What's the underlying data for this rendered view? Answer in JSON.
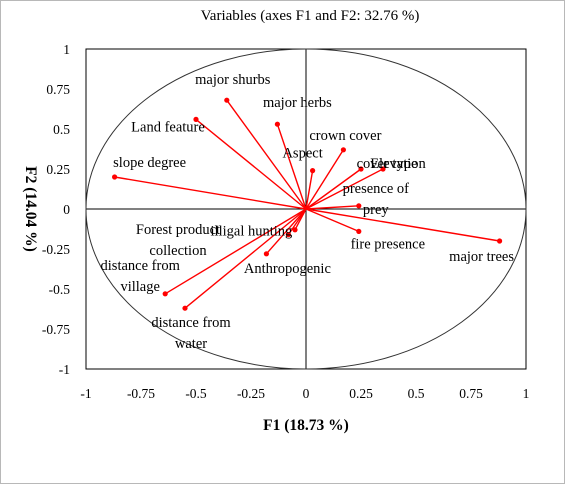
{
  "chart_data": {
    "type": "scatter",
    "title": "Variables (axes F1 and F2: 32.76 %)",
    "xlabel": "F1 (18.73 %)",
    "ylabel": "F2 (14.04 %)",
    "xlim": [
      -1,
      1
    ],
    "ylim": [
      -1,
      1
    ],
    "x_ticks": [
      "-1",
      "-0.75",
      "-0.5",
      "-0.25",
      "0",
      "0.25",
      "0.5",
      "0.75",
      "1"
    ],
    "y_ticks": [
      "1",
      "0.75",
      "0.5",
      "0.25",
      "0",
      "-0.25",
      "-0.5",
      "-0.75",
      "-1"
    ],
    "grid": false,
    "correlation_circle": true,
    "line_color": "#ff0000",
    "variables": [
      {
        "label": [
          "major shurbs"
        ],
        "x": -0.36,
        "y": 0.68
      },
      {
        "label": [
          "major herbs"
        ],
        "x": -0.13,
        "y": 0.53
      },
      {
        "label": [
          "Land feature"
        ],
        "x": -0.5,
        "y": 0.56
      },
      {
        "label": [
          "slope degree"
        ],
        "x": -0.87,
        "y": 0.2
      },
      {
        "label": [
          "Aspect"
        ],
        "x": 0.03,
        "y": 0.24
      },
      {
        "label": [
          "crown cover"
        ],
        "x": 0.17,
        "y": 0.37
      },
      {
        "label": [
          "cover type"
        ],
        "x": 0.25,
        "y": 0.25
      },
      {
        "label": [
          "Elevation"
        ],
        "x": 0.35,
        "y": 0.25
      },
      {
        "label": [
          "presence of",
          "prey"
        ],
        "x": 0.24,
        "y": 0.02
      },
      {
        "label": [
          "major trees"
        ],
        "x": 0.88,
        "y": -0.2
      },
      {
        "label": [
          "fire presence"
        ],
        "x": 0.24,
        "y": -0.14
      },
      {
        "label": [
          "Forest product",
          "collection"
        ],
        "x": -0.05,
        "y": -0.13
      },
      {
        "label": [
          "illigal hunting"
        ],
        "x": -0.08,
        "y": -0.16
      },
      {
        "label": [
          "Anthropogenic"
        ],
        "x": -0.18,
        "y": -0.28
      },
      {
        "label": [
          "distance from",
          "village"
        ],
        "x": -0.64,
        "y": -0.53
      },
      {
        "label": [
          "distance from",
          "water"
        ],
        "x": -0.55,
        "y": -0.62
      }
    ]
  }
}
